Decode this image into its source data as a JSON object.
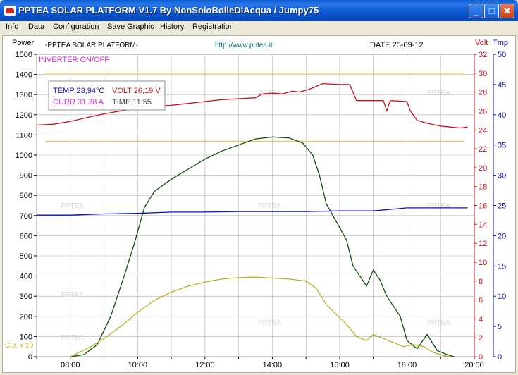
{
  "window": {
    "title": "PPTEA SOLAR PLATFORM V1.7  By NonSoloBolleDiAcqua / Jumpy75",
    "min_label": "_",
    "max_label": "□",
    "close_label": "✕"
  },
  "menu": [
    "Info",
    "Data",
    "Configuration",
    "Save Graphic",
    "History",
    "Registration"
  ],
  "header": {
    "power_label": "Power",
    "platform_label": "-PPTEA SOLAR PLATFORM-",
    "url": "http://www.pptea.it",
    "date": "DATE 25-09-12",
    "volt_label": "Volt",
    "tmp_label": "Tmp"
  },
  "inverter_label": "INVERTER ON/OFF",
  "cur_label": "Cur. x 10",
  "watermark": "PPTEA",
  "readings": {
    "temp": "TEMP  23,94°C",
    "volt": "VOLT  26,19  V",
    "curr": "CURR   31,38  A",
    "time": "TIME  11:55"
  },
  "colors": {
    "power": "#0f4f0f",
    "volt": "#c0141e",
    "temp": "#1010b4",
    "current": "#b8b228",
    "inverter": "#d030d0",
    "threshold": "#e8c858",
    "grid": "#b0b0b0"
  },
  "chart_data": {
    "type": "line",
    "title": "-PPTEA SOLAR PLATFORM-",
    "x_ticks": [
      "08:00",
      "10:00",
      "12:00",
      "14:00",
      "16:00",
      "18:00",
      "20:00"
    ],
    "x_range": [
      "07:00",
      "20:00"
    ],
    "power_axis": {
      "label": "Power",
      "range": [
        0,
        1500
      ],
      "ticks": [
        0,
        100,
        200,
        300,
        400,
        500,
        600,
        700,
        800,
        900,
        1000,
        1100,
        1200,
        1300,
        1400,
        1500
      ]
    },
    "volt_axis": {
      "label": "Volt",
      "range": [
        0,
        32
      ],
      "ticks": [
        0,
        2,
        4,
        6,
        8,
        10,
        12,
        14,
        16,
        18,
        20,
        22,
        24,
        26,
        28,
        30,
        32
      ]
    },
    "temp_axis": {
      "label": "Tmp",
      "range": [
        0,
        50
      ],
      "ticks": [
        0,
        5,
        10,
        15,
        20,
        25,
        30,
        35,
        40,
        45,
        50
      ]
    },
    "grid": true,
    "thresholds_volt": [
      30,
      22.8
    ],
    "series": [
      {
        "key": "power",
        "axis": "power",
        "points": [
          [
            8.0,
            0
          ],
          [
            8.4,
            10
          ],
          [
            8.8,
            60
          ],
          [
            9.2,
            200
          ],
          [
            9.6,
            400
          ],
          [
            9.9,
            560
          ],
          [
            10.2,
            740
          ],
          [
            10.5,
            820
          ],
          [
            11.0,
            880
          ],
          [
            11.5,
            930
          ],
          [
            12.0,
            980
          ],
          [
            12.5,
            1020
          ],
          [
            13.0,
            1050
          ],
          [
            13.5,
            1080
          ],
          [
            14.0,
            1090
          ],
          [
            14.5,
            1085
          ],
          [
            14.9,
            1060
          ],
          [
            15.2,
            1000
          ],
          [
            15.4,
            900
          ],
          [
            15.6,
            760
          ],
          [
            15.8,
            700
          ],
          [
            16.0,
            640
          ],
          [
            16.2,
            580
          ],
          [
            16.4,
            450
          ],
          [
            16.6,
            400
          ],
          [
            16.8,
            350
          ],
          [
            17.0,
            430
          ],
          [
            17.2,
            380
          ],
          [
            17.4,
            300
          ],
          [
            17.6,
            250
          ],
          [
            17.8,
            200
          ],
          [
            18.0,
            80
          ],
          [
            18.3,
            40
          ],
          [
            18.6,
            110
          ],
          [
            18.9,
            30
          ],
          [
            19.2,
            10
          ],
          [
            19.4,
            0
          ]
        ]
      },
      {
        "key": "volt",
        "axis": "volt",
        "points": [
          [
            7.0,
            24.5
          ],
          [
            7.5,
            24.6
          ],
          [
            8.0,
            24.9
          ],
          [
            8.5,
            25.3
          ],
          [
            9.0,
            25.7
          ],
          [
            9.5,
            26.0
          ],
          [
            10.0,
            26.3
          ],
          [
            10.5,
            26.5
          ],
          [
            11.0,
            26.6
          ],
          [
            11.5,
            26.8
          ],
          [
            12.0,
            27.0
          ],
          [
            12.5,
            27.2
          ],
          [
            13.0,
            27.3
          ],
          [
            13.5,
            27.4
          ],
          [
            13.7,
            27.8
          ],
          [
            14.0,
            27.9
          ],
          [
            14.3,
            27.8
          ],
          [
            14.6,
            28.1
          ],
          [
            14.8,
            28.0
          ],
          [
            15.1,
            28.3
          ],
          [
            15.5,
            28.9
          ],
          [
            16.0,
            28.8
          ],
          [
            16.3,
            28.8
          ],
          [
            16.5,
            27.1
          ],
          [
            17.0,
            27.1
          ],
          [
            17.3,
            27.1
          ],
          [
            17.4,
            26.0
          ],
          [
            17.5,
            27.1
          ],
          [
            18.0,
            27.0
          ],
          [
            18.1,
            26.0
          ],
          [
            18.3,
            25.0
          ],
          [
            18.6,
            24.7
          ],
          [
            19.0,
            24.4
          ],
          [
            19.6,
            24.2
          ],
          [
            19.8,
            24.3
          ]
        ]
      },
      {
        "key": "temp",
        "axis": "temp",
        "points": [
          [
            7.0,
            23.4
          ],
          [
            8.0,
            23.4
          ],
          [
            9.0,
            23.6
          ],
          [
            10.0,
            23.7
          ],
          [
            11.0,
            23.9
          ],
          [
            12.0,
            23.9
          ],
          [
            13.0,
            24.0
          ],
          [
            14.0,
            24.0
          ],
          [
            15.0,
            24.0
          ],
          [
            16.0,
            24.1
          ],
          [
            17.0,
            24.1
          ],
          [
            18.0,
            24.6
          ],
          [
            19.0,
            24.6
          ],
          [
            19.8,
            24.6
          ]
        ]
      },
      {
        "key": "current",
        "axis": "power",
        "points": [
          [
            8.0,
            0
          ],
          [
            8.5,
            40
          ],
          [
            9.0,
            90
          ],
          [
            9.5,
            150
          ],
          [
            10.0,
            220
          ],
          [
            10.5,
            280
          ],
          [
            11.0,
            320
          ],
          [
            11.5,
            350
          ],
          [
            12.0,
            370
          ],
          [
            12.5,
            385
          ],
          [
            13.0,
            392
          ],
          [
            13.5,
            395
          ],
          [
            14.0,
            390
          ],
          [
            14.5,
            385
          ],
          [
            15.0,
            375
          ],
          [
            15.3,
            340
          ],
          [
            15.6,
            260
          ],
          [
            15.9,
            210
          ],
          [
            16.2,
            160
          ],
          [
            16.5,
            100
          ],
          [
            16.8,
            80
          ],
          [
            17.0,
            110
          ],
          [
            17.3,
            90
          ],
          [
            17.6,
            70
          ],
          [
            17.9,
            50
          ],
          [
            18.2,
            60
          ],
          [
            18.5,
            50
          ],
          [
            18.8,
            20
          ],
          [
            19.1,
            5
          ],
          [
            19.3,
            0
          ]
        ]
      }
    ]
  }
}
